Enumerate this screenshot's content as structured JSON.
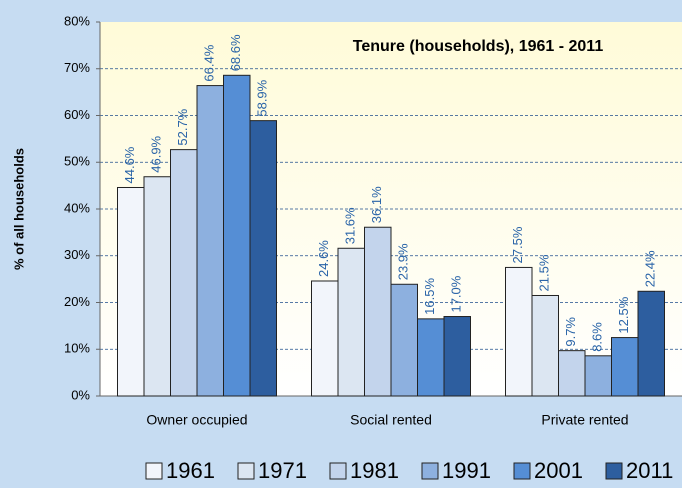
{
  "chart_data": {
    "type": "bar",
    "title": "Tenure (households), 1961 - 2011",
    "y_label": "% of all households",
    "categories": [
      "Owner occupied",
      "Social rented",
      "Private rented"
    ],
    "series": [
      {
        "name": "1961",
        "color": "#f2f5fb",
        "values": [
          44.6,
          24.6,
          27.5
        ],
        "value_labels": [
          "44.6%",
          "24.6%",
          "27.5%"
        ]
      },
      {
        "name": "1971",
        "color": "#dce6f2",
        "values": [
          46.9,
          31.6,
          21.5
        ],
        "value_labels": [
          "46.9%",
          "31.6%",
          "21.5%"
        ]
      },
      {
        "name": "1981",
        "color": "#c3d4ec",
        "values": [
          52.7,
          36.1,
          9.7
        ],
        "value_labels": [
          "52.7%",
          "36.1%",
          "9.7%"
        ]
      },
      {
        "name": "1991",
        "color": "#8db0df",
        "values": [
          66.4,
          23.9,
          8.6
        ],
        "value_labels": [
          "66.4%",
          "23.9%",
          "8.6%"
        ]
      },
      {
        "name": "2001",
        "color": "#558ed5",
        "values": [
          68.6,
          16.5,
          12.5
        ],
        "value_labels": [
          "68.6%",
          "16.5%",
          "12.5%"
        ]
      },
      {
        "name": "2011",
        "color": "#2d5e9f",
        "values": [
          58.9,
          17.0,
          22.4
        ],
        "value_labels": [
          "58.9%",
          "17.0%",
          "22.4%"
        ]
      }
    ],
    "ylim": [
      0,
      80
    ],
    "yticks": [
      {
        "value": 0,
        "label": "0%"
      },
      {
        "value": 10,
        "label": "10%"
      },
      {
        "value": 20,
        "label": "20%"
      },
      {
        "value": 30,
        "label": "30%"
      },
      {
        "value": 40,
        "label": "40%"
      },
      {
        "value": 50,
        "label": "50%"
      },
      {
        "value": 60,
        "label": "60%"
      },
      {
        "value": 70,
        "label": "70%"
      },
      {
        "value": 80,
        "label": "80%"
      }
    ],
    "grid": true
  }
}
